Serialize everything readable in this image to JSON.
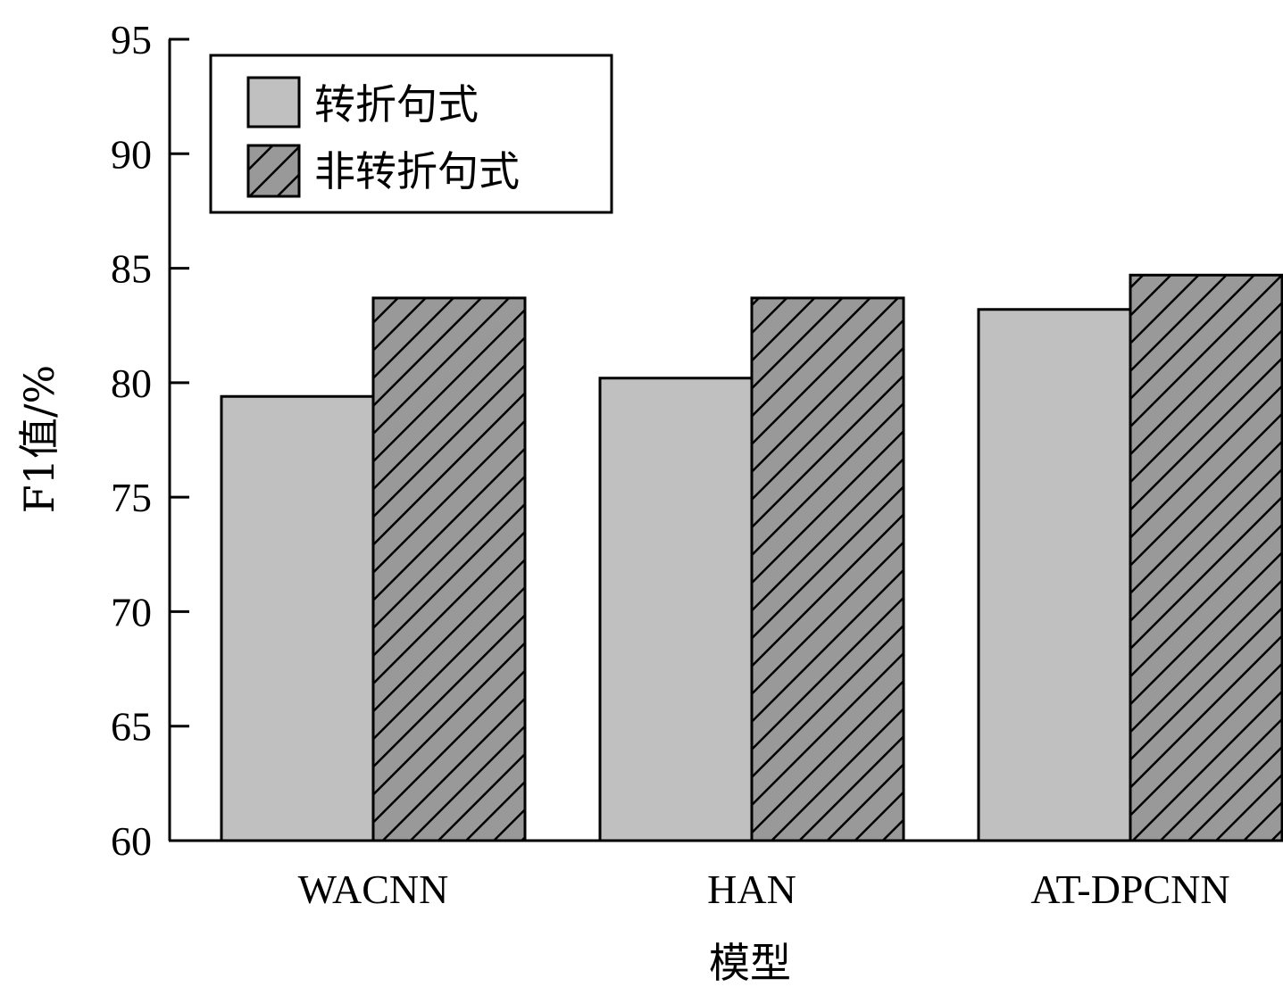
{
  "chart_data": {
    "type": "bar",
    "title": "",
    "xlabel": "模型",
    "ylabel": "F1值/%",
    "categories": [
      "WACNN",
      "HAN",
      "AT-DPCNN"
    ],
    "series": [
      {
        "name": "转折句式",
        "values": [
          79.4,
          80.2,
          83.2
        ],
        "color": "#c0c0c0",
        "pattern": "solid"
      },
      {
        "name": "非转折句式",
        "values": [
          83.7,
          83.7,
          84.7
        ],
        "color": "#999999",
        "pattern": "diagonal-hatch"
      }
    ],
    "ylim": [
      60,
      95
    ],
    "yticks": [
      "60",
      "65",
      "70",
      "75",
      "80",
      "85",
      "90",
      "95"
    ],
    "grid": false,
    "legend_position": "top-left"
  }
}
